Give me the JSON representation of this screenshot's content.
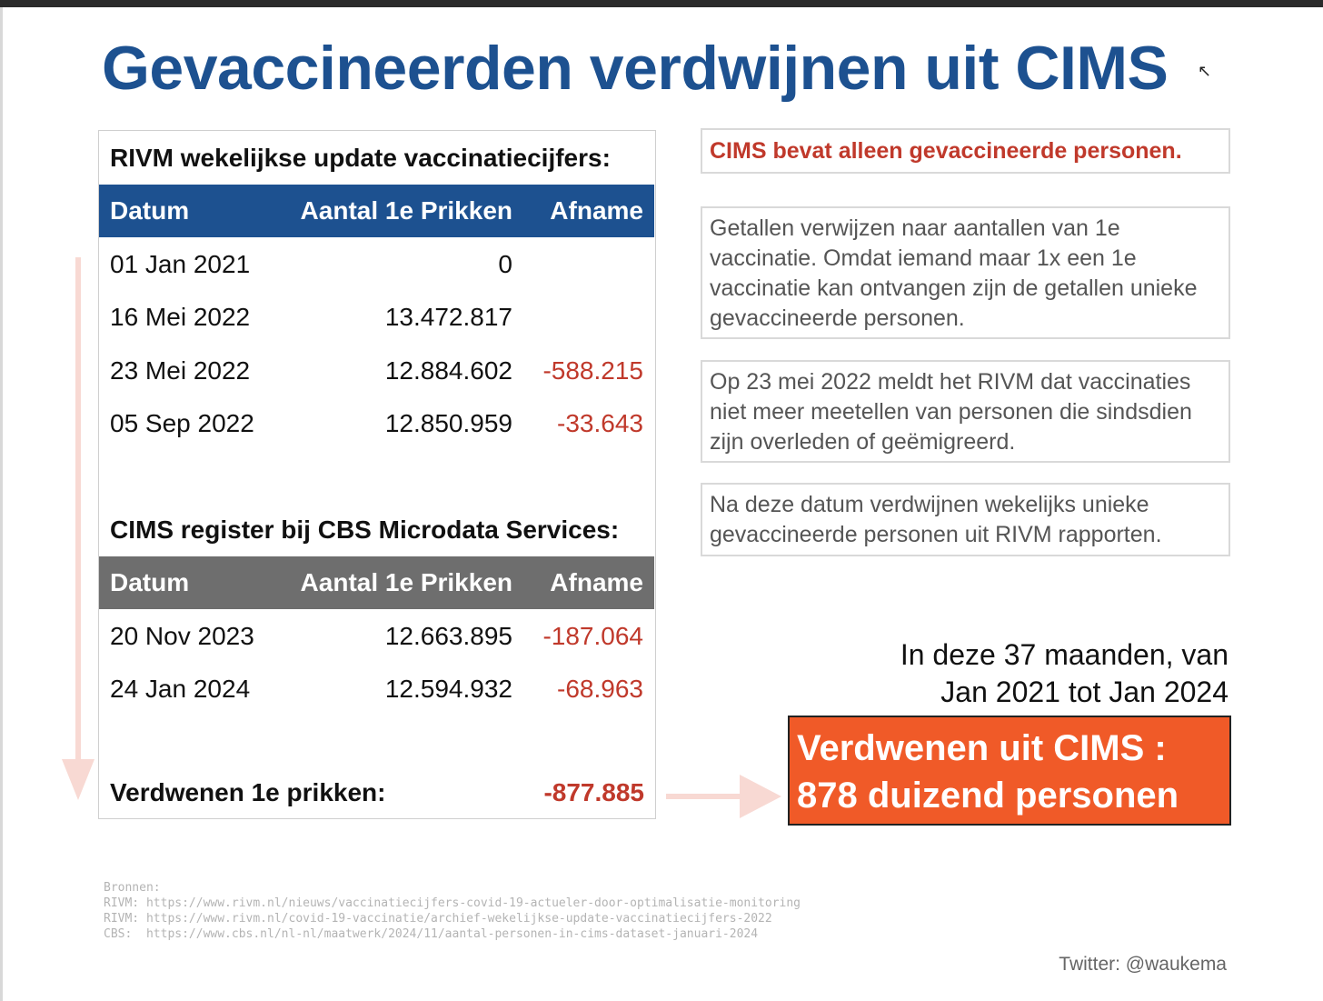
{
  "title": "Gevaccineerden verdwijnen uit CIMS",
  "rivm": {
    "heading": "RIVM wekelijkse update vaccinatiecijfers:",
    "columns": [
      "Datum",
      "Aantal 1e Prikken",
      "Afname"
    ],
    "rows": [
      {
        "date": "01 Jan 2021",
        "count": "0",
        "decrease": ""
      },
      {
        "date": "16 Mei 2022",
        "count": "13.472.817",
        "decrease": ""
      },
      {
        "date": "23 Mei 2022",
        "count": "12.884.602",
        "decrease": "-588.215"
      },
      {
        "date": "05 Sep 2022",
        "count": "12.850.959",
        "decrease": "-33.643"
      }
    ]
  },
  "cims": {
    "heading": "CIMS register bij CBS Microdata Services:",
    "columns": [
      "Datum",
      "Aantal 1e Prikken",
      "Afname"
    ],
    "rows": [
      {
        "date": "20 Nov 2023",
        "count": "12.663.895",
        "decrease": "-187.064"
      },
      {
        "date": "24 Jan 2024",
        "count": "12.594.932",
        "decrease": "-68.963"
      }
    ]
  },
  "total": {
    "label": "Verdwenen 1e prikken:",
    "value": "-877.885"
  },
  "notes": {
    "claim": "CIMS bevat alleen gevaccineerde personen.",
    "n1": "Getallen verwijzen naar aantallen van 1e vaccinatie. Omdat iemand maar 1x een 1e vaccinatie kan ontvangen zijn de getallen unieke gevaccineerde personen.",
    "n2": "Op 23 mei 2022 meldt het RIVM dat vaccinaties niet meer meetellen van personen die sindsdien zijn overleden of geëmigreerd.",
    "n3": "Na deze datum verdwijnen wekelijks unieke gevaccineerde personen uit RIVM rapporten."
  },
  "summary": {
    "line1": "In deze 37 maanden, van",
    "line2": "Jan 2021 tot Jan 2024"
  },
  "callout": {
    "line1": "Verdwenen uit CIMS :",
    "line2": "878 duizend personen"
  },
  "sources": {
    "label": "Bronnen:",
    "items": [
      "RIVM: https://www.rivm.nl/nieuws/vaccinatiecijfers-covid-19-actueler-door-optimalisatie-monitoring",
      "RIVM: https://www.rivm.nl/covid-19-vaccinatie/archief-wekelijkse-update-vaccinatiecijfers-2022",
      "CBS:  https://www.cbs.nl/nl-nl/maatwerk/2024/11/aantal-personen-in-cims-dataset-januari-2024"
    ]
  },
  "credit": "Twitter: @waukema"
}
